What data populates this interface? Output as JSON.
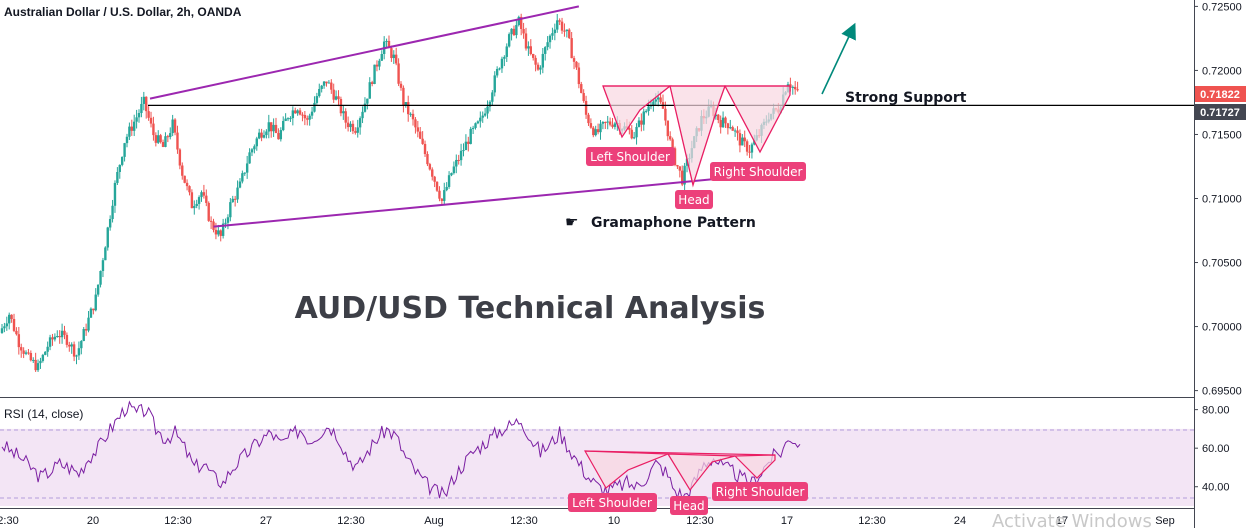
{
  "header": {
    "title": "Australian Dollar / U.S. Dollar, 2h, OANDA"
  },
  "main_title": "AUD/USD Technical Analysis",
  "annotations": {
    "strong_support": "Strong Support",
    "pattern_name": "Gramaphone Pattern",
    "left_shoulder": "Left Shoulder",
    "head": "Head",
    "right_shoulder": "Right Shoulder",
    "rsi_left_shoulder": "Left Shoulder",
    "rsi_head": "Head",
    "rsi_right_shoulder": "Right Shoulder",
    "pointer_icon": "pointing-hand-icon"
  },
  "price_tags": {
    "last_price": "0.71822",
    "support_price": "0.71727"
  },
  "rsi": {
    "label": "RSI (14, close)",
    "upper_band": 70,
    "lower_band": 30,
    "ticks": [
      "80.00",
      "60.00",
      "40.00"
    ]
  },
  "watermark": "Activate Windows",
  "colors": {
    "up": "#26a69a",
    "down": "#ef5350",
    "channel": "#9c27b0",
    "support_line": "#000000",
    "pattern_fill": "#f8d7e1",
    "pattern_line": "#e91e63",
    "label_bg": "#ec407a",
    "arrow": "#00897b",
    "rsi_line": "#7b1fa2",
    "rsi_band": "#f3e5f5"
  },
  "chart_data": {
    "type": "candlestick",
    "symbol": "AUD/USD",
    "interval": "2h",
    "y_axis_ticks": [
      "0.72500",
      "0.72000",
      "0.71500",
      "0.71000",
      "0.70500",
      "0.70000",
      "0.69500"
    ],
    "x_axis_ticks": [
      "2:30",
      "20",
      "12:30",
      "27",
      "12:30",
      "Aug",
      "12:30",
      "10",
      "12:30",
      "17",
      "12:30",
      "24",
      "17",
      "Sep"
    ],
    "ylim": [
      0.6945,
      0.7255
    ],
    "price_path": [
      0.6995,
      0.701,
      0.6988,
      0.6975,
      0.6968,
      0.6985,
      0.6995,
      0.699,
      0.6978,
      0.7,
      0.7022,
      0.7065,
      0.711,
      0.7145,
      0.716,
      0.7175,
      0.715,
      0.714,
      0.7158,
      0.712,
      0.7095,
      0.7105,
      0.708,
      0.707,
      0.7095,
      0.711,
      0.7135,
      0.715,
      0.7158,
      0.7148,
      0.7165,
      0.7172,
      0.716,
      0.718,
      0.7192,
      0.7178,
      0.716,
      0.7155,
      0.7175,
      0.72,
      0.7222,
      0.721,
      0.7175,
      0.716,
      0.714,
      0.712,
      0.7098,
      0.712,
      0.7135,
      0.715,
      0.716,
      0.718,
      0.7205,
      0.7225,
      0.7238,
      0.7215,
      0.72,
      0.7222,
      0.724,
      0.7228,
      0.72,
      0.7165,
      0.715,
      0.7158,
      0.716,
      0.7155,
      0.715,
      0.7165,
      0.718,
      0.717,
      0.7135,
      0.7115,
      0.714,
      0.7162,
      0.717,
      0.716,
      0.7158,
      0.7145,
      0.7138,
      0.715,
      0.7165,
      0.717,
      0.7192,
      0.7182
    ],
    "channel": {
      "upper": [
        [
          0,
          0.7178
        ],
        [
          60,
          0.725
        ]
      ],
      "lower": [
        [
          22,
          0.7078
        ],
        [
          78,
          0.7118
        ]
      ]
    },
    "support_level": 0.71727,
    "last_price": 0.71822,
    "rsi_values": [
      62,
      58,
      55,
      50,
      45,
      48,
      52,
      50,
      47,
      55,
      60,
      68,
      75,
      82,
      78,
      80,
      70,
      65,
      68,
      60,
      50,
      52,
      45,
      42,
      50,
      55,
      60,
      65,
      68,
      62,
      66,
      70,
      64,
      68,
      72,
      66,
      55,
      50,
      58,
      65,
      70,
      66,
      55,
      48,
      42,
      38,
      35,
      45,
      52,
      58,
      62,
      66,
      70,
      72,
      75,
      65,
      58,
      62,
      68,
      60,
      52,
      45,
      40,
      38,
      40,
      42,
      40,
      45,
      52,
      48,
      38,
      35,
      42,
      52,
      55,
      50,
      48,
      44,
      42,
      48,
      55,
      58,
      66,
      62
    ],
    "rsi_ylim": [
      30,
      85
    ]
  }
}
